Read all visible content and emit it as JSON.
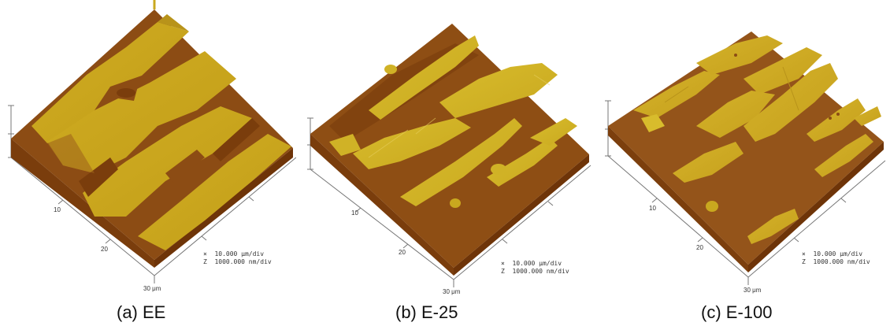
{
  "panels": [
    {
      "caption": "(a) EE",
      "scale_x": "×  10.000 μm/div",
      "scale_z": "Z  1000.000 nm/div",
      "tick_10": "10",
      "tick_20": "20",
      "tick_30": "30 μm"
    },
    {
      "caption": "(b) E-25",
      "scale_x": "×  10.000 μm/div",
      "scale_z": "Z  1000.000 nm/div",
      "tick_10": "10",
      "tick_20": "20",
      "tick_30": "30 μm"
    },
    {
      "caption": "(c) E-100",
      "scale_x": "×  10.000 μm/div",
      "scale_z": "Z  1000.000 nm/div",
      "tick_10": "10",
      "tick_20": "20",
      "tick_30": "30 μm"
    }
  ],
  "colors": {
    "plateau": "#c9a81f",
    "plateau_light": "#d9bc30",
    "valley": "#8a4a12",
    "valley_dark": "#6e3408",
    "edge_shadow": "#7a3d0c",
    "axis": "#666666"
  }
}
